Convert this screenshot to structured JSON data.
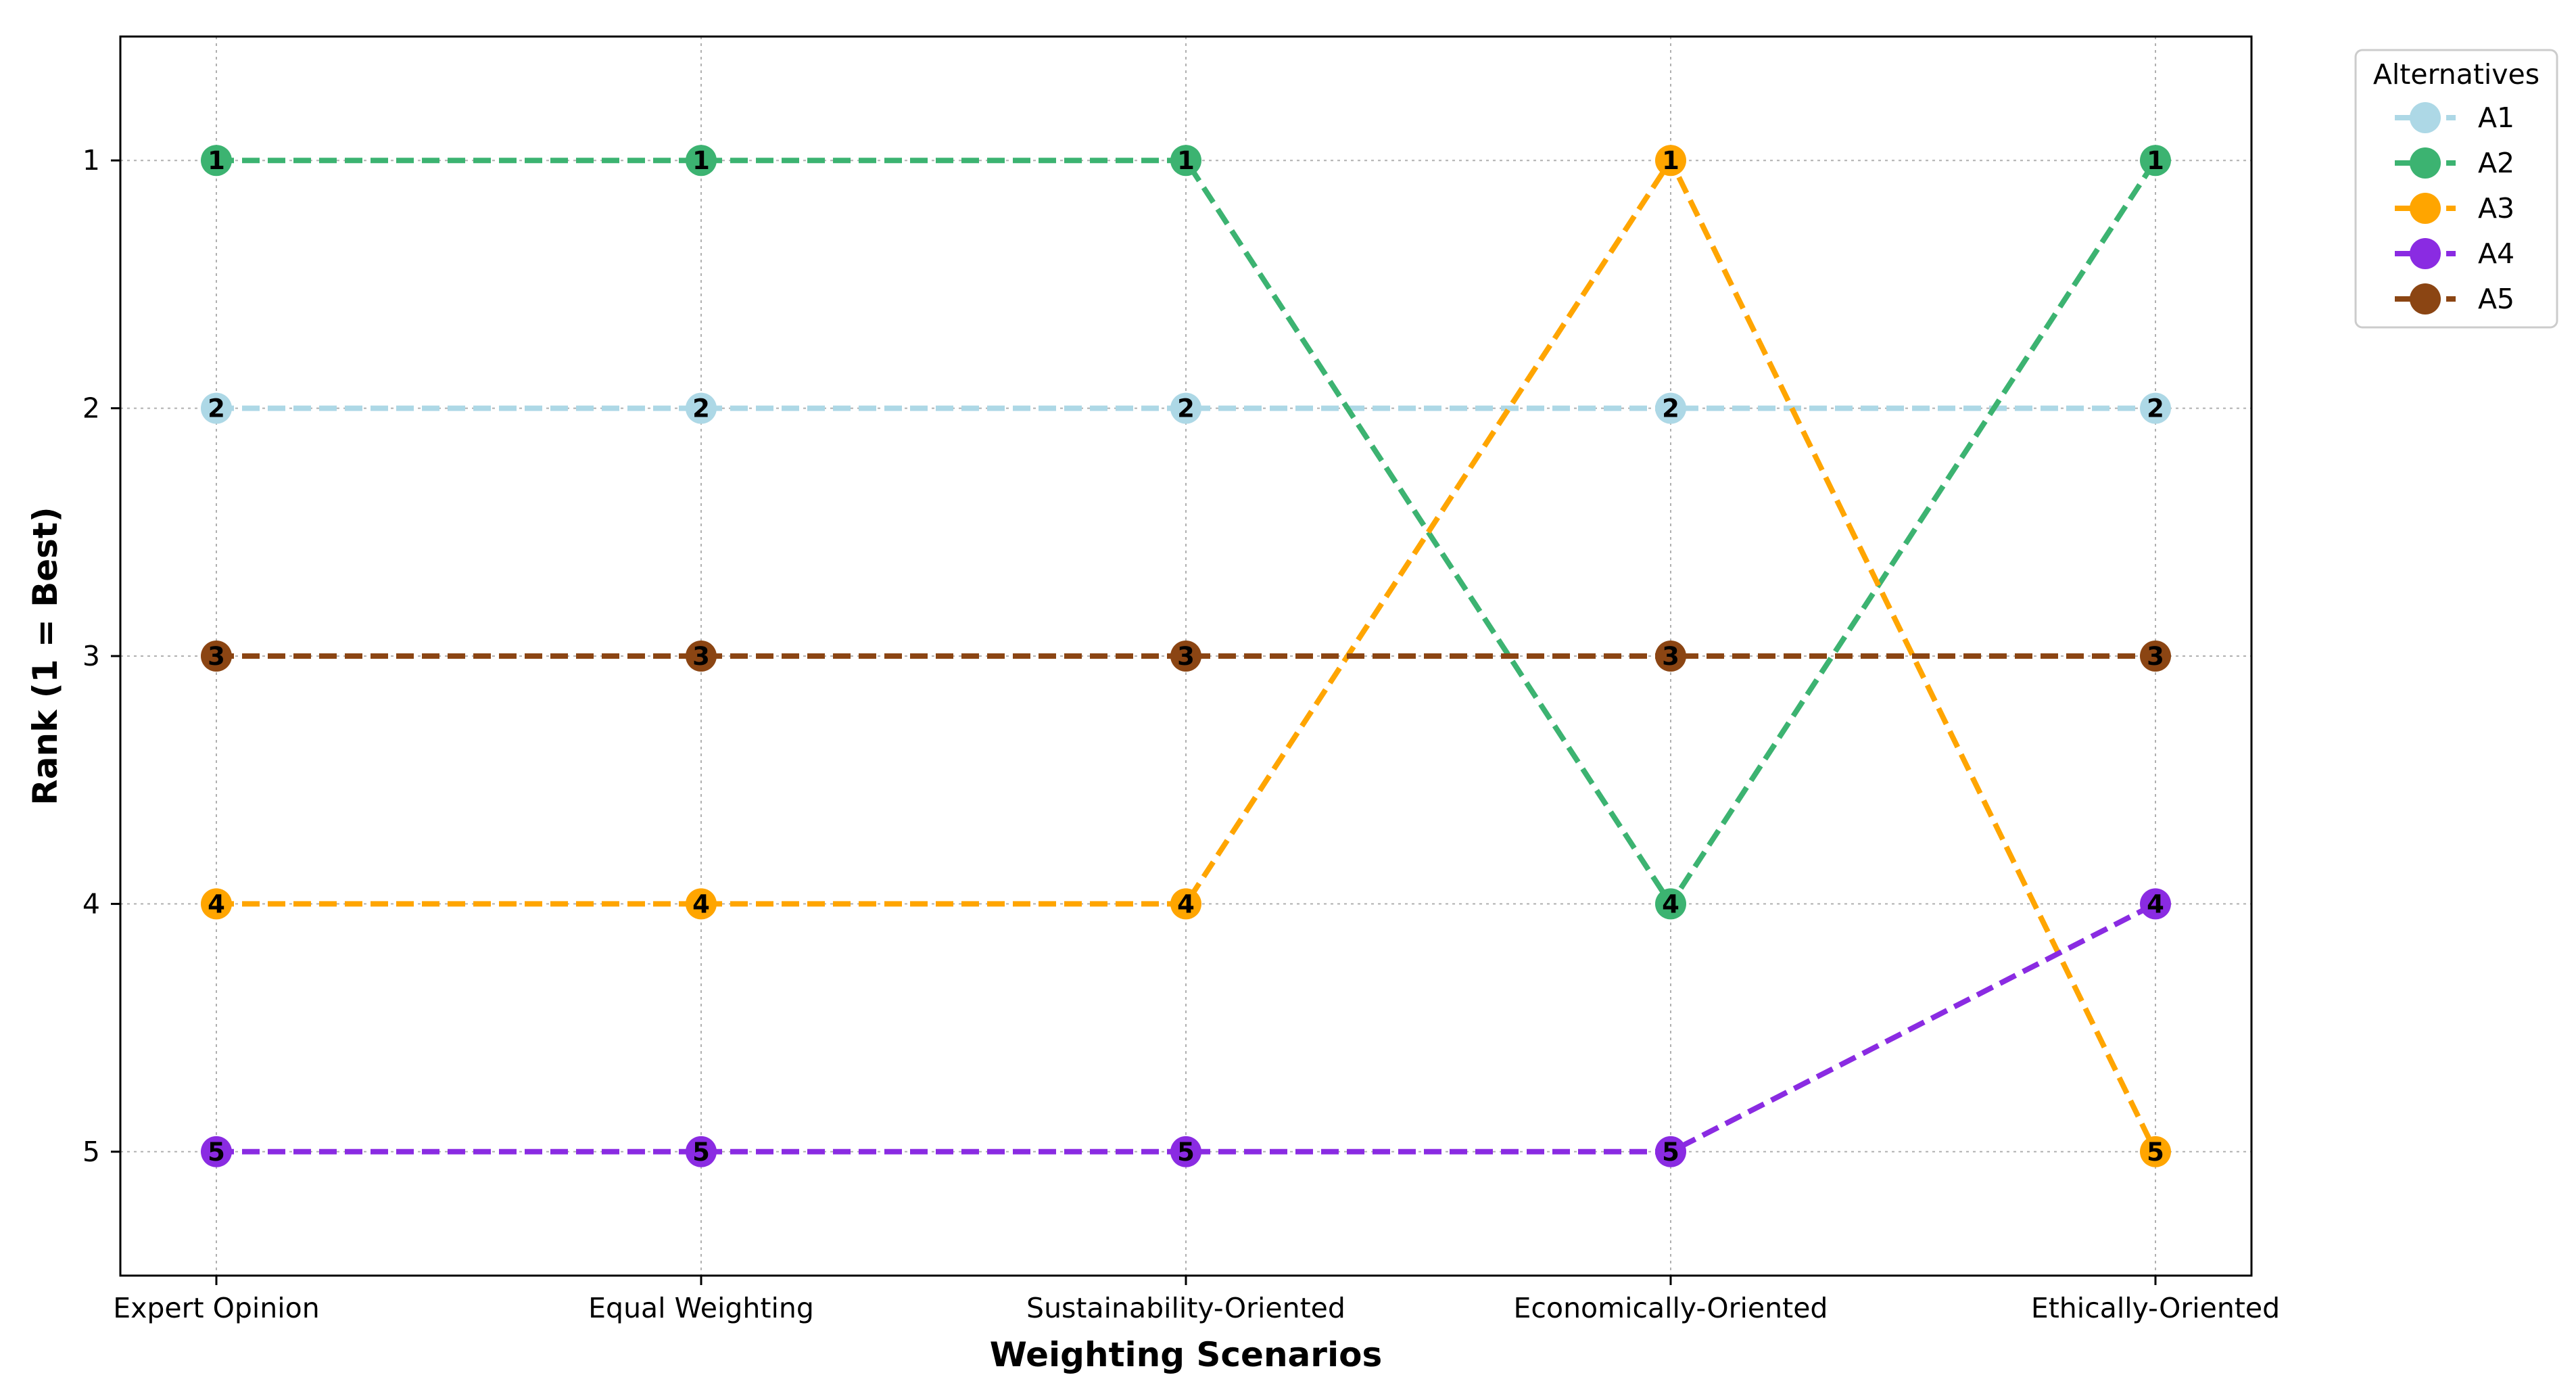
{
  "chart_data": {
    "type": "line",
    "xlabel": "Weighting Scenarios",
    "ylabel": "Rank (1 = Best)",
    "categories": [
      "Expert Opinion",
      "Equal Weighting",
      "Sustainability-Oriented",
      "Economically-Oriented",
      "Ethically-Oriented"
    ],
    "y_ticks": [
      "1",
      "2",
      "3",
      "4",
      "5"
    ],
    "ylim": [
      5.5,
      0.5
    ],
    "y_inverted": true,
    "grid": true,
    "line_style": "dashed",
    "legend_title": "Alternatives",
    "legend_position": "outside-top-right",
    "series": [
      {
        "name": "A1",
        "color": "#ADD8E6",
        "values": [
          2,
          2,
          2,
          2,
          2
        ]
      },
      {
        "name": "A2",
        "color": "#3CB371",
        "values": [
          1,
          1,
          1,
          4,
          1
        ]
      },
      {
        "name": "A3",
        "color": "#FFA500",
        "values": [
          4,
          4,
          4,
          1,
          5
        ]
      },
      {
        "name": "A4",
        "color": "#8A2BE2",
        "values": [
          5,
          5,
          5,
          5,
          4
        ]
      },
      {
        "name": "A5",
        "color": "#8B4513",
        "values": [
          3,
          3,
          3,
          3,
          3
        ]
      }
    ]
  }
}
